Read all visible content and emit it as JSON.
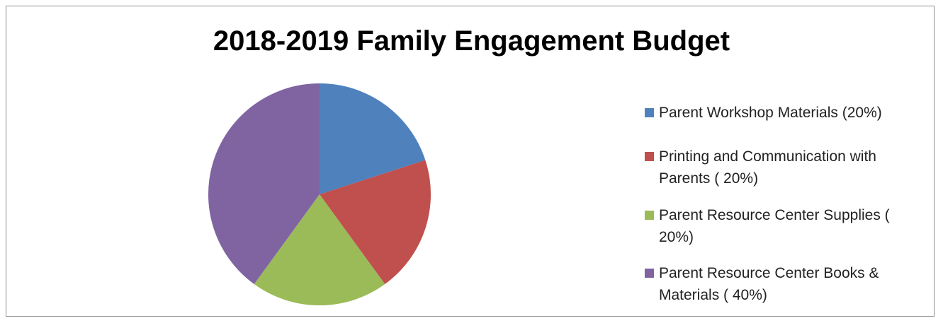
{
  "chart_data": {
    "type": "pie",
    "title": "2018-2019 Family Engagement Budget",
    "categories": [
      "Parent Workshop Materials (20%)",
      "Printing and Communication with Parents ( 20%)",
      "Parent Resource Center Supplies ( 20%)",
      "Parent Resource Center Books & Materials ( 40%)"
    ],
    "values": [
      20,
      20,
      20,
      40
    ],
    "colors": [
      "#4f81bd",
      "#c0504d",
      "#9bbb59",
      "#8064a2"
    ],
    "legend": "right"
  }
}
